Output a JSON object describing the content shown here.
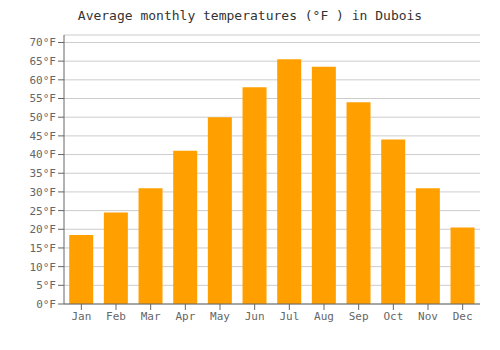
{
  "chart_data": {
    "type": "bar",
    "title": "Average monthly temperatures (°F ) in Dubois",
    "categories": [
      "Jan",
      "Feb",
      "Mar",
      "Apr",
      "May",
      "Jun",
      "Jul",
      "Aug",
      "Sep",
      "Oct",
      "Nov",
      "Dec"
    ],
    "values": [
      18.5,
      24.5,
      31.0,
      41.0,
      50.0,
      58.0,
      65.5,
      63.5,
      54.0,
      44.0,
      31.0,
      20.5
    ],
    "color": "#FFA000",
    "ylim": [
      0,
      72
    ],
    "yticks": [
      {
        "value": 0,
        "label": "0°F"
      },
      {
        "value": 5,
        "label": "5°F"
      },
      {
        "value": 10,
        "label": "10°F"
      },
      {
        "value": 15,
        "label": "15°F"
      },
      {
        "value": 20,
        "label": "20°F"
      },
      {
        "value": 25,
        "label": "25°F"
      },
      {
        "value": 30,
        "label": "30°F"
      },
      {
        "value": 35,
        "label": "35°F"
      },
      {
        "value": 40,
        "label": "40°F"
      },
      {
        "value": 45,
        "label": "45°F"
      },
      {
        "value": 50,
        "label": "50°F"
      },
      {
        "value": 55,
        "label": "55°F"
      },
      {
        "value": 60,
        "label": "60°F"
      },
      {
        "value": 65,
        "label": "65°F"
      },
      {
        "value": 70,
        "label": "70°F"
      }
    ],
    "grid": true
  }
}
